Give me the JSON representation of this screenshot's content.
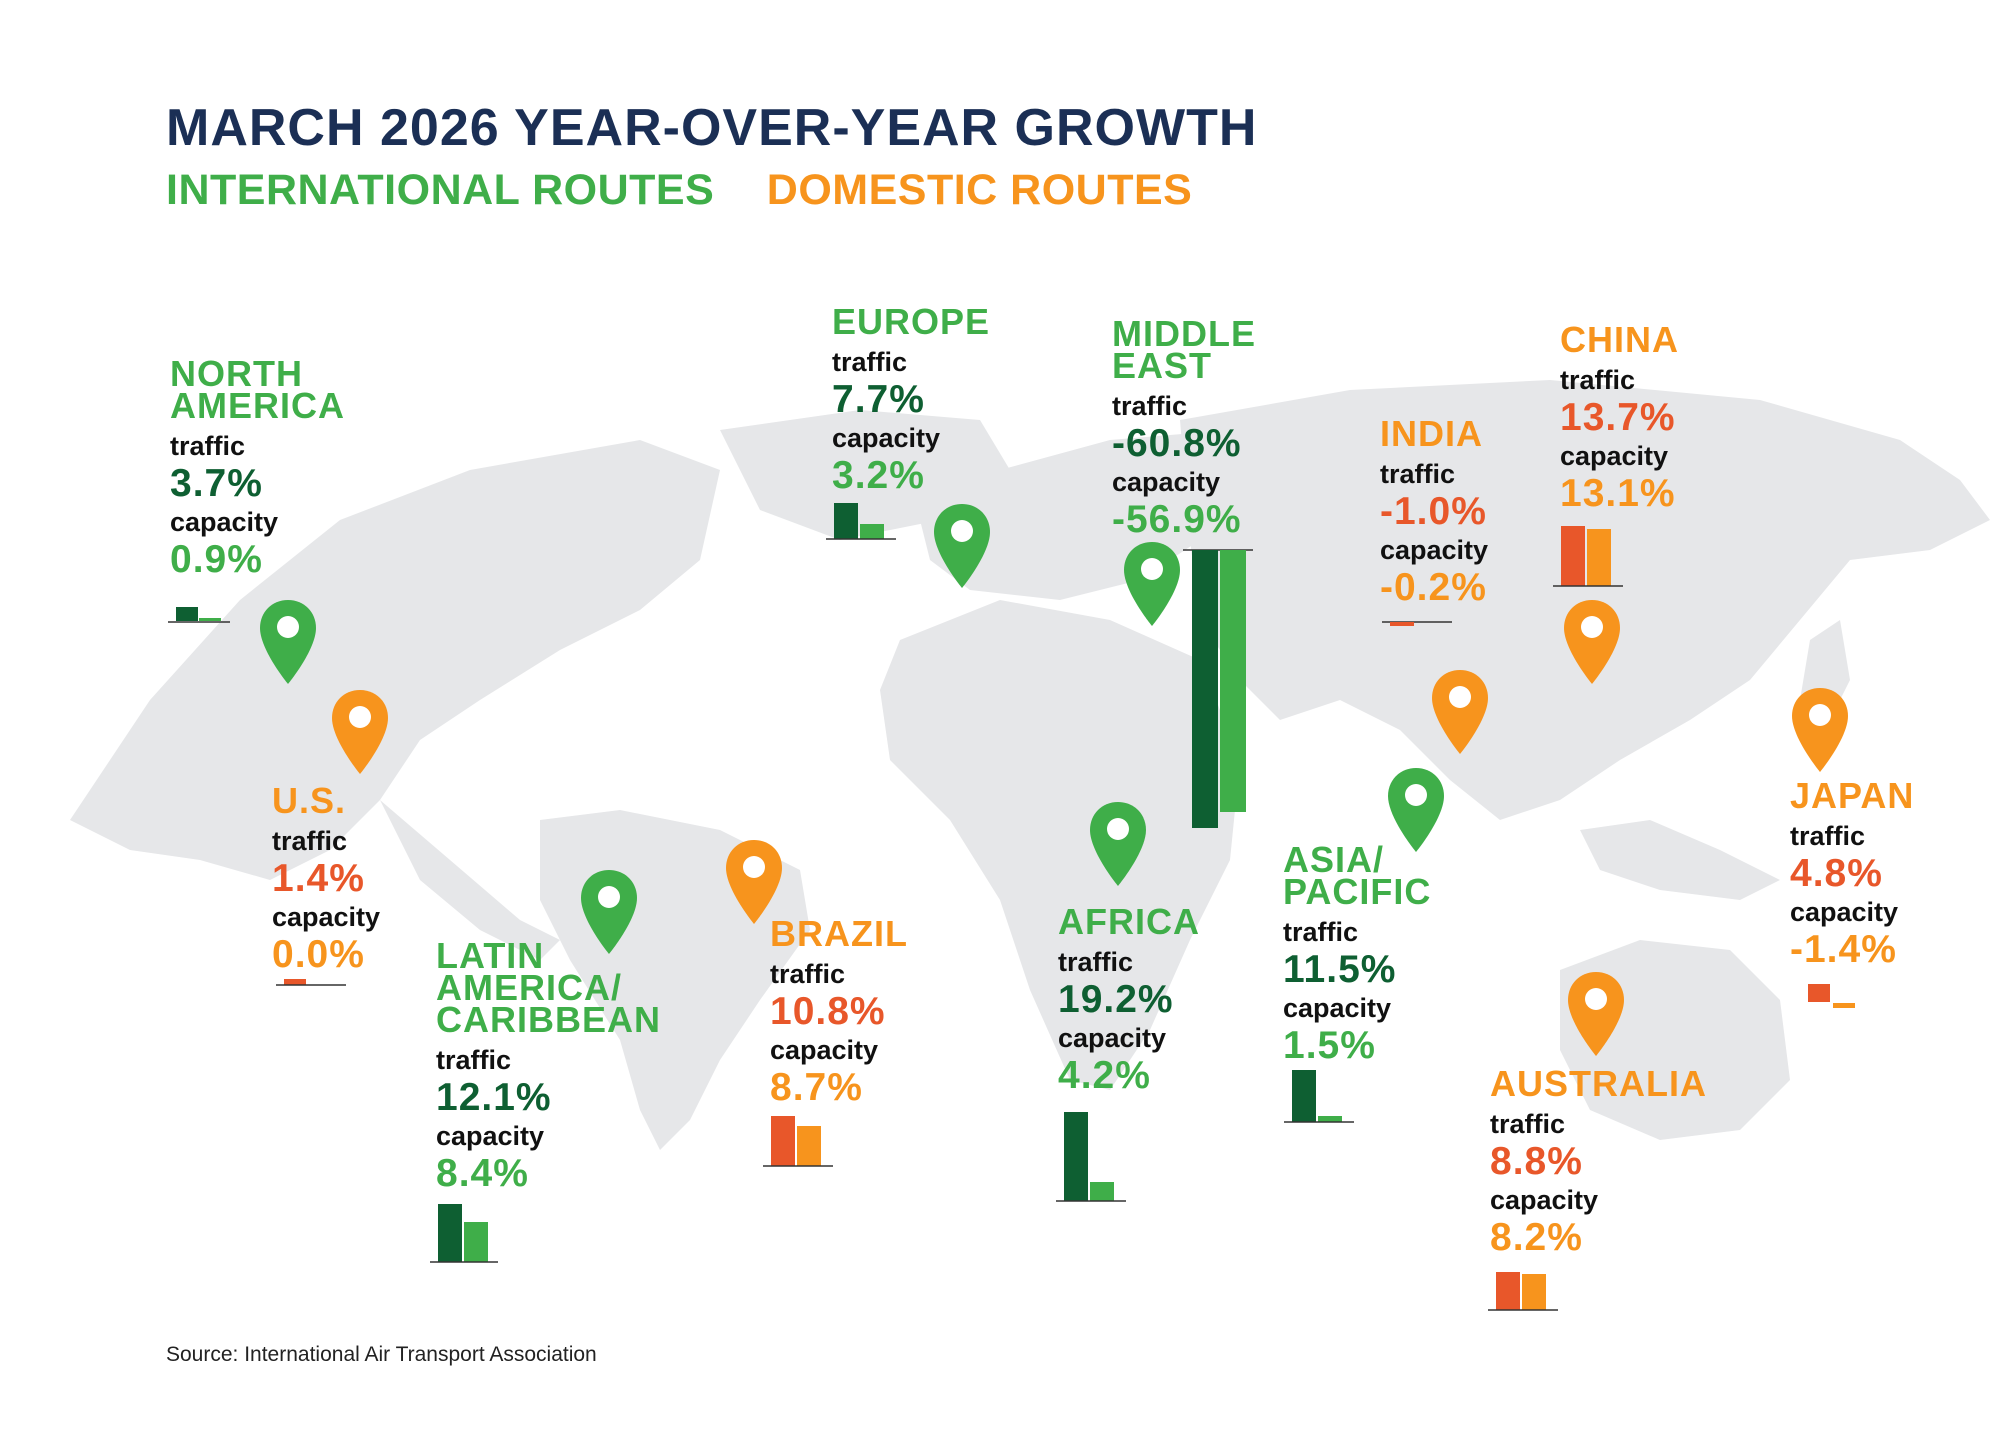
{
  "title": "MARCH 2026 YEAR-OVER-YEAR GROWTH",
  "legend": {
    "international": "INTERNATIONAL ROUTES",
    "domestic": "DOMESTIC ROUTES"
  },
  "labels": {
    "traffic": "traffic",
    "capacity": "capacity"
  },
  "colors": {
    "navy": "#1b2f55",
    "intl_green": "#3fae49",
    "intl_dark": "#0e5f32",
    "dom_orange": "#f7941d",
    "dom_red": "#e8572a",
    "land": "#e6e7e9"
  },
  "regions": {
    "north_america": {
      "name": "NORTH\nAMERICA",
      "type": "international",
      "traffic": "3.7%",
      "capacity": "0.9%"
    },
    "us": {
      "name": "U.S.",
      "type": "domestic",
      "traffic": "1.4%",
      "capacity": "0.0%"
    },
    "latin_america": {
      "name": "LATIN\nAMERICA/\nCARIBBEAN",
      "type": "international",
      "traffic": "12.1%",
      "capacity": "8.4%"
    },
    "brazil": {
      "name": "BRAZIL",
      "type": "domestic",
      "traffic": "10.8%",
      "capacity": "8.7%"
    },
    "europe": {
      "name": "EUROPE",
      "type": "international",
      "traffic": "7.7%",
      "capacity": "3.2%"
    },
    "middle_east": {
      "name": "MIDDLE\nEAST",
      "type": "international",
      "traffic": "-60.8%",
      "capacity": "-56.9%"
    },
    "africa": {
      "name": "AFRICA",
      "type": "international",
      "traffic": "19.2%",
      "capacity": "4.2%"
    },
    "asia_pacific": {
      "name": "ASIA/\nPACIFIC",
      "type": "international",
      "traffic": "11.5%",
      "capacity": "1.5%"
    },
    "india": {
      "name": "INDIA",
      "type": "domestic",
      "traffic": "-1.0%",
      "capacity": "-0.2%"
    },
    "china": {
      "name": "CHINA",
      "type": "domestic",
      "traffic": "13.7%",
      "capacity": "13.1%"
    },
    "japan": {
      "name": "JAPAN",
      "type": "domestic",
      "traffic": "4.8%",
      "capacity": "-1.4%"
    },
    "australia": {
      "name": "AUSTRALIA",
      "type": "domestic",
      "traffic": "8.8%",
      "capacity": "8.2%"
    }
  },
  "source": "Source: International Air Transport Association"
}
